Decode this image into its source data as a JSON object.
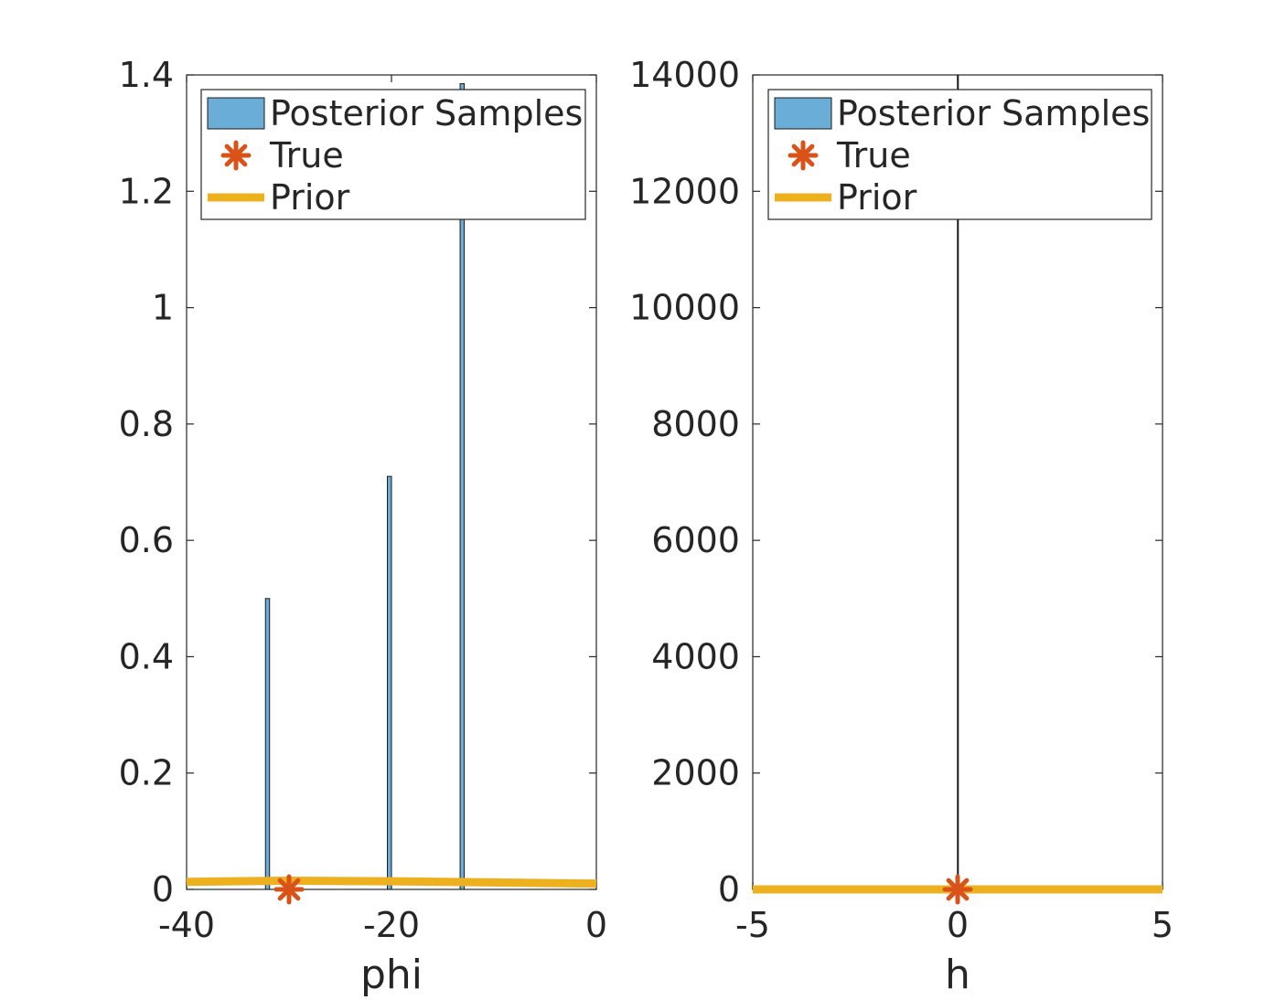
{
  "chart_data": [
    {
      "type": "bar",
      "xlabel": "phi",
      "ylabel": "",
      "xlim": [
        -40,
        0
      ],
      "ylim": [
        0,
        1.4
      ],
      "xticks": [
        "-40",
        "-20",
        "0"
      ],
      "yticks": [
        "0",
        "0.2",
        "0.4",
        "0.6",
        "0.8",
        "1",
        "1.2",
        "1.4"
      ],
      "legend": {
        "placement": "top-right",
        "entries": [
          "Posterior Samples",
          "True",
          "Prior"
        ]
      },
      "series": [
        {
          "name": "Posterior Samples",
          "type": "bar",
          "bins": [
            {
              "x0": -32.3,
              "x1": -31.9,
              "value": 0.5
            },
            {
              "x0": -20.4,
              "x1": -20.0,
              "value": 0.71
            },
            {
              "x0": -13.3,
              "x1": -12.9,
              "value": 1.385
            }
          ]
        },
        {
          "name": "True",
          "type": "scatter",
          "x": [
            -30
          ],
          "y": [
            0
          ]
        },
        {
          "name": "Prior",
          "type": "line",
          "x": [
            -40,
            -30,
            -20,
            -10,
            0
          ],
          "y": [
            0.013,
            0.015,
            0.014,
            0.012,
            0.01
          ]
        }
      ]
    },
    {
      "type": "bar",
      "xlabel": "h",
      "ylabel": "",
      "xlim": [
        -5,
        5
      ],
      "ylim": [
        0,
        14000
      ],
      "xticks": [
        "-5",
        "0",
        "5"
      ],
      "yticks": [
        "0",
        "2000",
        "4000",
        "6000",
        "8000",
        "10000",
        "12000",
        "14000"
      ],
      "legend": {
        "placement": "top-right",
        "entries": [
          "Posterior Samples",
          "True",
          "Prior"
        ]
      },
      "series": [
        {
          "name": "Posterior Samples",
          "type": "bar",
          "bins": [
            {
              "x0": -0.005,
              "x1": 0.005,
              "value": 14000
            }
          ]
        },
        {
          "name": "True",
          "type": "scatter",
          "x": [
            0
          ],
          "y": [
            0
          ]
        },
        {
          "name": "Prior",
          "type": "line",
          "x": [
            -5,
            5
          ],
          "y": [
            0,
            0
          ]
        }
      ]
    }
  ],
  "colors": {
    "bar_fill": "#6aaed8",
    "bar_edge": "#1a1a1a",
    "true_marker": "#d95319",
    "prior_line": "#edb120",
    "axis": "#262626"
  }
}
